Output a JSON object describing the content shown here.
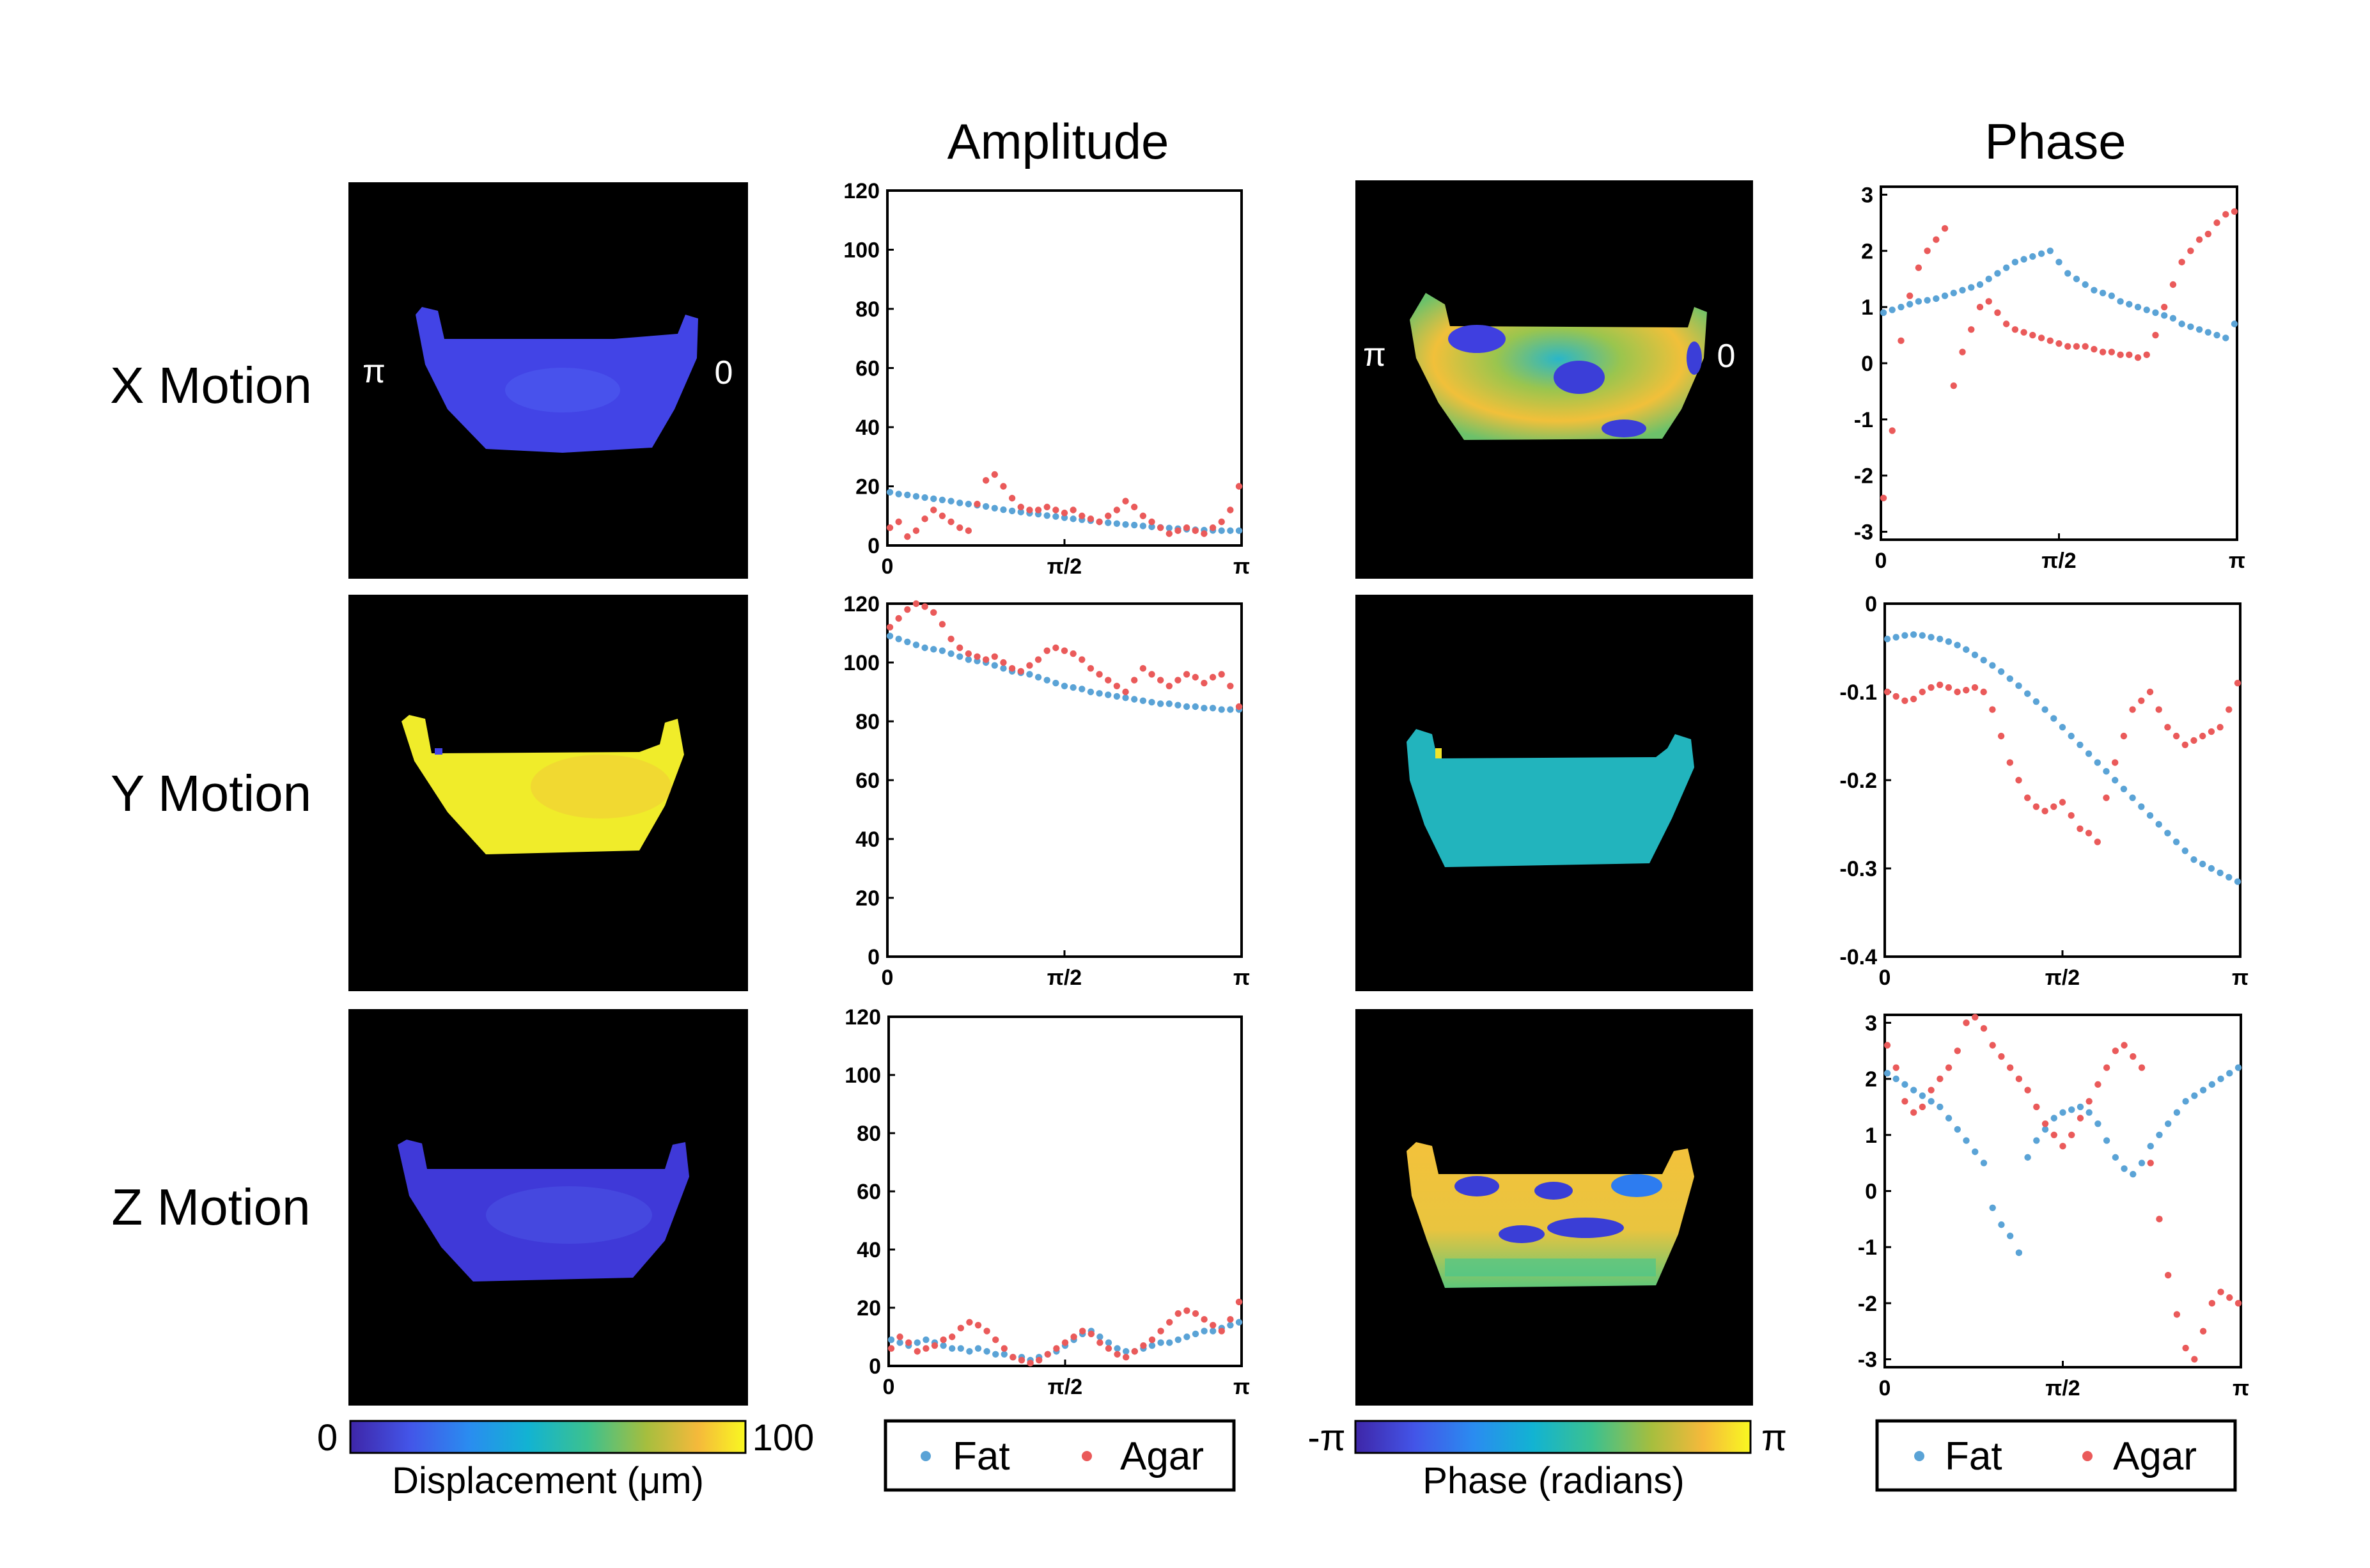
{
  "column_titles": {
    "amplitude": "Amplitude",
    "phase": "Phase"
  },
  "row_labels": [
    "X Motion",
    "Y Motion",
    "Z Motion"
  ],
  "image_labels": {
    "left": "π",
    "right": "0"
  },
  "colorbars": {
    "displacement": {
      "min_label": "0",
      "max_label": "100",
      "title": "Displacement (μm)"
    },
    "phase": {
      "min_label": "-π",
      "max_label": "π",
      "title": "Phase (radians)"
    }
  },
  "legend": {
    "fat": "Fat",
    "agar": "Agar"
  },
  "colors": {
    "fat": "#5aa3d6",
    "agar": "#ea5a5a",
    "parula_low": "#3a2fd0",
    "parula_high": "#f5f11a"
  },
  "x_tick_labels": [
    "0",
    "π/2",
    "π"
  ],
  "maps": {
    "amplitude": [
      "low",
      "high",
      "low"
    ],
    "phase": [
      "mixed",
      "uniform-cyan",
      "mixed-yellow"
    ]
  },
  "chart_data": [
    {
      "type": "scatter",
      "title": "X Motion Amplitude",
      "ylim": [
        0,
        120
      ],
      "yticks": [
        "0",
        "20",
        "40",
        "60",
        "80",
        "100",
        "120"
      ],
      "series": [
        {
          "name": "Fat",
          "values": [
            18,
            17.4,
            17.1,
            16.6,
            16.2,
            15.8,
            15.4,
            15,
            14.4,
            14,
            13.6,
            13.2,
            12.6,
            12.1,
            11.7,
            11.3,
            10.9,
            10.6,
            10.1,
            9.8,
            9.4,
            9,
            8.7,
            8.4,
            8,
            7.7,
            7.4,
            7.1,
            6.9,
            6.6,
            6.3,
            6.1,
            5.9,
            5.7,
            5.5,
            5.3,
            5.2,
            5.1,
            5,
            5,
            5
          ]
        },
        {
          "name": "Agar",
          "values": [
            6,
            8,
            3,
            5,
            9,
            12,
            10,
            8,
            6,
            5,
            14,
            22,
            24,
            20,
            16,
            13,
            12,
            12,
            13,
            12,
            11,
            12,
            10,
            9,
            8,
            10,
            12,
            15,
            13,
            10,
            8,
            6,
            4,
            5,
            6,
            5,
            4,
            6,
            8,
            12,
            20
          ]
        }
      ]
    },
    {
      "type": "scatter",
      "title": "Y Motion Amplitude",
      "ylim": [
        0,
        120
      ],
      "yticks": [
        "0",
        "20",
        "40",
        "60",
        "80",
        "100",
        "120"
      ],
      "series": [
        {
          "name": "Fat",
          "values": [
            109,
            108,
            107,
            106,
            105,
            104.5,
            104,
            103,
            102,
            101,
            100.5,
            100,
            99,
            98,
            97,
            96.5,
            96,
            95,
            94,
            93,
            92,
            91.5,
            91,
            90,
            89.5,
            89,
            88.5,
            88,
            87.5,
            87,
            86.5,
            86,
            86,
            85.5,
            85,
            85,
            84.5,
            84.5,
            84,
            84,
            84
          ]
        },
        {
          "name": "Agar",
          "values": [
            112,
            115,
            118,
            120,
            119,
            117,
            113,
            108,
            105,
            103,
            102,
            101,
            102,
            100,
            98,
            97,
            99,
            101,
            104,
            105,
            104,
            103,
            101,
            98,
            96,
            94,
            92,
            90,
            94,
            98,
            96,
            94,
            92,
            94,
            96,
            95,
            93,
            95,
            96,
            92,
            85
          ]
        }
      ]
    },
    {
      "type": "scatter",
      "title": "Z Motion Amplitude",
      "ylim": [
        0,
        120
      ],
      "yticks": [
        "0",
        "20",
        "40",
        "60",
        "80",
        "100",
        "120"
      ],
      "series": [
        {
          "name": "Fat",
          "values": [
            9,
            8,
            7,
            8,
            9,
            8,
            7,
            6,
            6,
            5,
            6,
            5,
            4,
            4,
            3,
            3,
            2,
            3,
            4,
            5,
            7,
            9,
            11,
            12,
            10,
            8,
            6,
            5,
            5,
            6,
            7,
            8,
            8,
            9,
            10,
            11,
            12,
            12,
            13,
            14,
            15
          ]
        },
        {
          "name": "Agar",
          "values": [
            6,
            10,
            8,
            5,
            6,
            7,
            9,
            10,
            13,
            15,
            14,
            12,
            9,
            6,
            3,
            2,
            1,
            2,
            4,
            6,
            8,
            10,
            12,
            11,
            8,
            6,
            4,
            3,
            5,
            7,
            9,
            12,
            15,
            18,
            19,
            18,
            16,
            14,
            12,
            16,
            22
          ]
        }
      ]
    },
    {
      "type": "scatter",
      "title": "X Motion Phase",
      "ylim": [
        -3.14159,
        3.14159
      ],
      "yticks": [
        "-3",
        "-2",
        "-1",
        "0",
        "1",
        "2",
        "3"
      ],
      "series": [
        {
          "name": "Fat",
          "values": [
            0.9,
            0.95,
            1,
            1.05,
            1.1,
            1.12,
            1.15,
            1.2,
            1.25,
            1.3,
            1.35,
            1.4,
            1.5,
            1.6,
            1.7,
            1.8,
            1.85,
            1.9,
            1.95,
            2.0,
            1.8,
            1.6,
            1.5,
            1.4,
            1.3,
            1.25,
            1.2,
            1.1,
            1.05,
            1.0,
            0.95,
            0.9,
            0.85,
            0.8,
            0.7,
            0.65,
            0.6,
            0.55,
            0.5,
            0.45,
            0.7
          ]
        },
        {
          "name": "Agar",
          "values": [
            -2.4,
            -1.2,
            0.4,
            1.2,
            1.7,
            2.0,
            2.2,
            2.4,
            -0.4,
            0.2,
            0.6,
            1.0,
            1.1,
            0.9,
            0.7,
            0.6,
            0.55,
            0.5,
            0.45,
            0.4,
            0.35,
            0.3,
            0.3,
            0.3,
            0.25,
            0.2,
            0.2,
            0.15,
            0.15,
            0.1,
            0.15,
            0.5,
            1.0,
            1.4,
            1.8,
            2.0,
            2.2,
            2.3,
            2.5,
            2.65,
            2.7
          ]
        }
      ]
    },
    {
      "type": "scatter",
      "title": "Y Motion Phase",
      "ylim": [
        -0.4,
        0
      ],
      "yticks": [
        "-0.4",
        "-0.3",
        "-0.2",
        "-0.1",
        "0"
      ],
      "series": [
        {
          "name": "Fat",
          "values": [
            -0.04,
            -0.038,
            -0.036,
            -0.035,
            -0.036,
            -0.038,
            -0.04,
            -0.043,
            -0.047,
            -0.052,
            -0.058,
            -0.064,
            -0.07,
            -0.077,
            -0.085,
            -0.093,
            -0.102,
            -0.111,
            -0.12,
            -0.13,
            -0.14,
            -0.15,
            -0.16,
            -0.17,
            -0.18,
            -0.19,
            -0.2,
            -0.21,
            -0.22,
            -0.23,
            -0.24,
            -0.25,
            -0.26,
            -0.27,
            -0.28,
            -0.29,
            -0.295,
            -0.3,
            -0.305,
            -0.31,
            -0.315
          ]
        },
        {
          "name": "Agar",
          "values": [
            -0.1,
            -0.105,
            -0.11,
            -0.108,
            -0.1,
            -0.095,
            -0.092,
            -0.095,
            -0.1,
            -0.098,
            -0.095,
            -0.1,
            -0.12,
            -0.15,
            -0.18,
            -0.2,
            -0.22,
            -0.23,
            -0.235,
            -0.23,
            -0.225,
            -0.24,
            -0.255,
            -0.26,
            -0.27,
            -0.22,
            -0.18,
            -0.15,
            -0.12,
            -0.11,
            -0.1,
            -0.12,
            -0.14,
            -0.15,
            -0.16,
            -0.155,
            -0.15,
            -0.145,
            -0.14,
            -0.12,
            -0.09
          ]
        }
      ]
    },
    {
      "type": "scatter",
      "title": "Z Motion Phase",
      "ylim": [
        -3.14159,
        3.14159
      ],
      "yticks": [
        "-3",
        "-2",
        "-1",
        "0",
        "1",
        "2",
        "3"
      ],
      "series": [
        {
          "name": "Fat",
          "values": [
            2.1,
            2.0,
            1.9,
            1.8,
            1.7,
            1.6,
            1.5,
            1.3,
            1.1,
            0.9,
            0.7,
            0.5,
            -0.3,
            -0.6,
            -0.8,
            -1.1,
            0.6,
            0.9,
            1.1,
            1.3,
            1.4,
            1.45,
            1.5,
            1.4,
            1.2,
            0.9,
            0.6,
            0.4,
            0.3,
            0.5,
            0.8,
            1.0,
            1.2,
            1.4,
            1.6,
            1.7,
            1.8,
            1.9,
            2.0,
            2.1,
            2.2
          ]
        },
        {
          "name": "Agar",
          "values": [
            2.6,
            2.2,
            1.6,
            1.4,
            1.5,
            1.8,
            2.0,
            2.2,
            2.5,
            3.0,
            3.1,
            2.9,
            2.6,
            2.4,
            2.2,
            2.0,
            1.8,
            1.5,
            1.2,
            1.0,
            0.8,
            1.0,
            1.3,
            1.6,
            1.9,
            2.2,
            2.5,
            2.6,
            2.4,
            2.2,
            0.5,
            -0.5,
            -1.5,
            -2.2,
            -2.8,
            -3.0,
            -2.5,
            -2.0,
            -1.8,
            -1.9,
            -2.0
          ]
        }
      ]
    }
  ]
}
